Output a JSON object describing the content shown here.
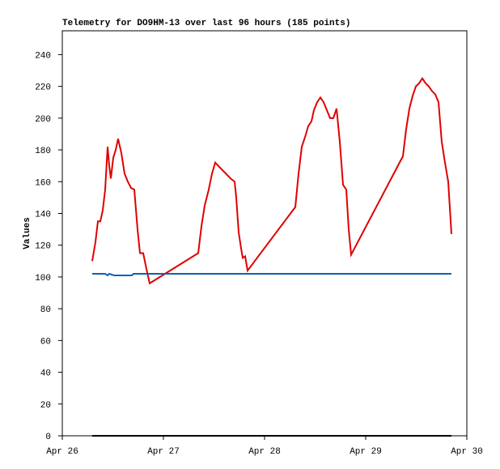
{
  "chart_data": {
    "type": "line",
    "title": "Telemetry for DO9HM-13 over last 96 hours (185 points)",
    "y_label": "Values",
    "xlim": [
      26,
      30
    ],
    "xticks": [
      {
        "value": 26,
        "label": "Apr 26"
      },
      {
        "value": 27,
        "label": "Apr 27"
      },
      {
        "value": 28,
        "label": "Apr 28"
      },
      {
        "value": 29,
        "label": "Apr 29"
      },
      {
        "value": 30,
        "label": "Apr 30"
      }
    ],
    "ylim": [
      0,
      255
    ],
    "yticks": [
      0,
      20,
      40,
      60,
      80,
      100,
      120,
      140,
      160,
      180,
      200,
      220,
      240
    ],
    "series": [
      {
        "color": "#e00000",
        "x": [
          26.296,
          26.328,
          26.352,
          26.376,
          26.4,
          26.424,
          26.448,
          26.464,
          26.48,
          26.504,
          26.528,
          26.552,
          26.584,
          26.616,
          26.648,
          26.68,
          26.712,
          26.744,
          26.768,
          26.8,
          26.832,
          26.864,
          27.344,
          27.376,
          27.408,
          27.448,
          27.48,
          27.512,
          27.664,
          27.704,
          27.72,
          27.744,
          27.768,
          27.784,
          27.808,
          27.832,
          28.304,
          28.336,
          28.368,
          28.4,
          28.432,
          28.464,
          28.488,
          28.52,
          28.552,
          28.584,
          28.616,
          28.648,
          28.68,
          28.712,
          28.744,
          28.776,
          28.808,
          28.832,
          28.856,
          29.368,
          29.4,
          29.432,
          29.464,
          29.496,
          29.528,
          29.56,
          29.592,
          29.624,
          29.656,
          29.688,
          29.72,
          29.752,
          29.784,
          29.816,
          29.848
        ],
        "values": [
          110,
          122,
          135,
          135,
          142,
          155,
          182,
          170,
          162,
          175,
          180,
          187,
          178,
          165,
          160,
          156,
          155,
          130,
          115,
          115,
          105,
          96,
          115,
          132,
          145,
          155,
          165,
          172,
          162,
          160,
          150,
          128,
          118,
          112,
          113,
          104,
          144,
          165,
          182,
          188,
          195,
          198,
          205,
          210,
          213,
          210,
          205,
          200,
          200,
          206,
          185,
          158,
          155,
          130,
          114,
          176,
          193,
          206,
          214,
          220,
          222,
          225,
          222,
          220,
          217,
          215,
          210,
          185,
          172,
          160,
          127
        ]
      },
      {
        "color": "#1060b0",
        "x": [
          26.296,
          26.424,
          26.448,
          26.464,
          26.512,
          26.688,
          26.704,
          29.848
        ],
        "values": [
          102,
          102,
          101,
          102,
          101,
          101,
          102,
          102
        ]
      },
      {
        "color": "#000000",
        "x": [
          26.296,
          29.848
        ],
        "values": [
          0,
          0
        ]
      }
    ]
  }
}
